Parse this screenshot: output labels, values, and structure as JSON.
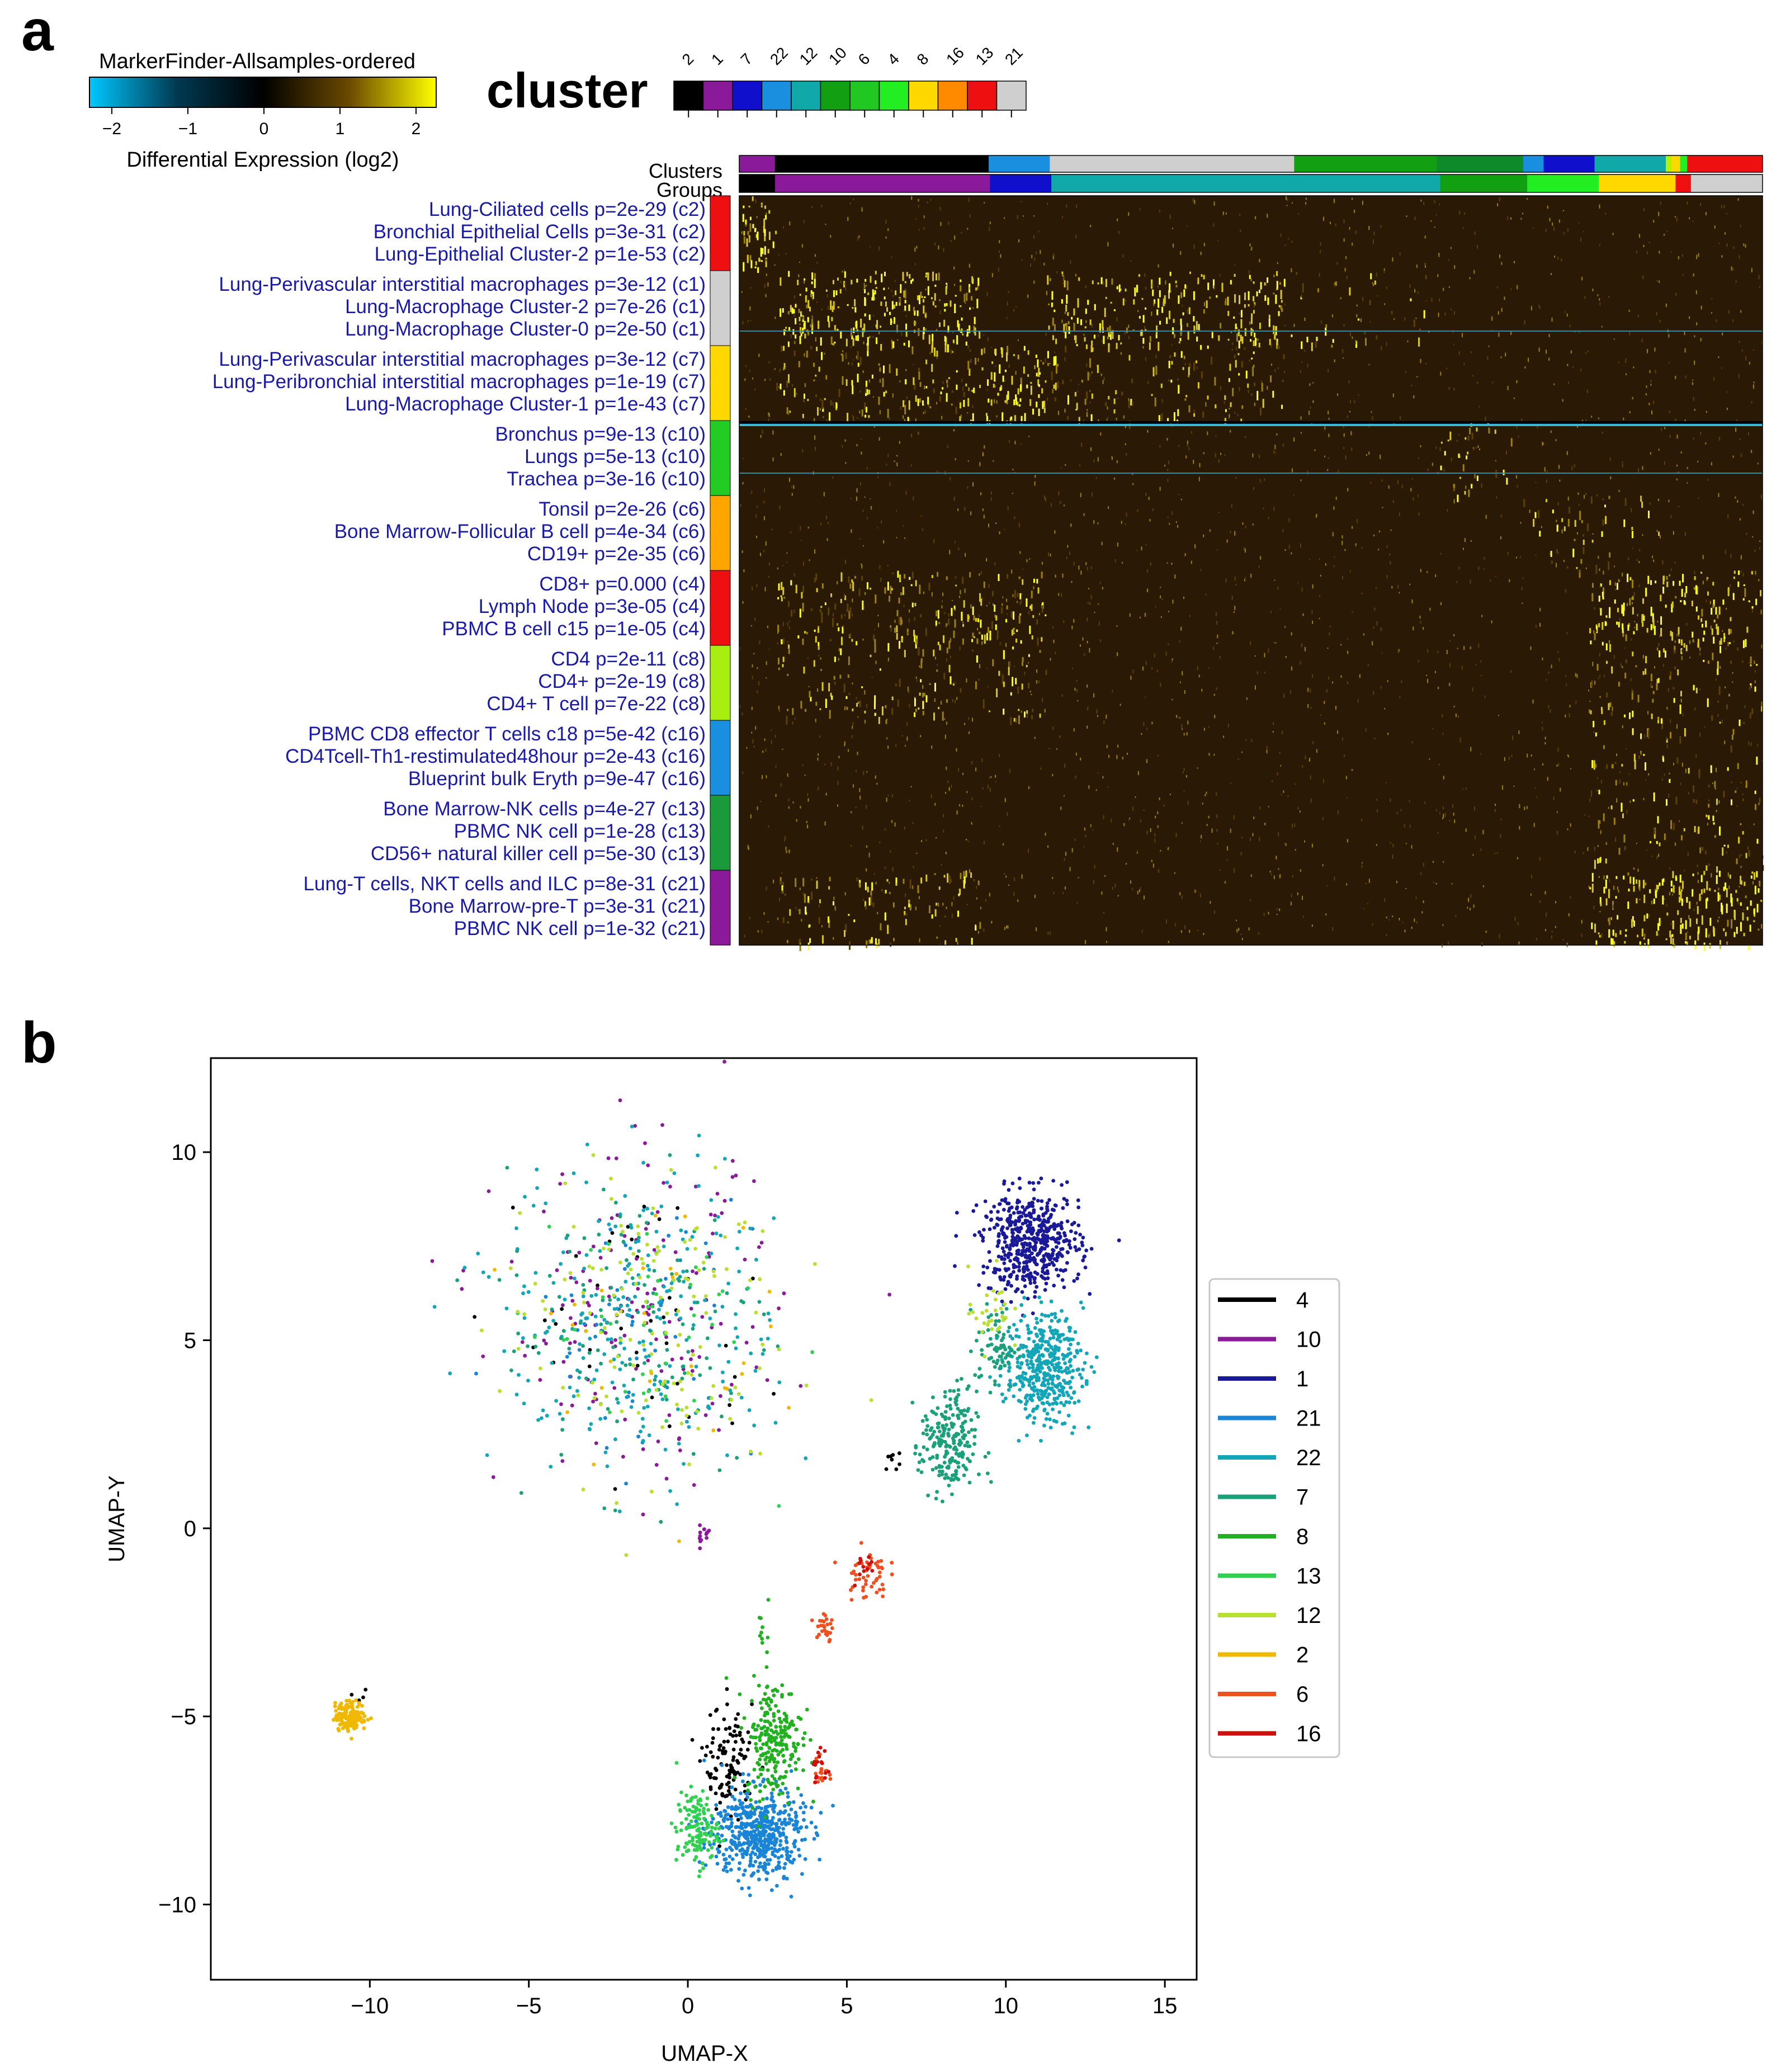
{
  "figure": {
    "panel_a_letter": "a",
    "panel_b_letter": "b"
  },
  "colorbar": {
    "title": "MarkerFinder-Allsamples-ordered",
    "ticks": [
      "−2",
      "−1",
      "0",
      "1",
      "2"
    ],
    "label": "Differential Expression (log2)",
    "stops": [
      "#00c8ff",
      "#003a52",
      "#000000",
      "#6b4a00",
      "#ffff00"
    ]
  },
  "cluster_key": {
    "title": "cluster",
    "labels": [
      "2",
      "1",
      "7",
      "22",
      "12",
      "10",
      "6",
      "4",
      "8",
      "16",
      "13",
      "21"
    ],
    "colors": [
      "#000000",
      "#8b1a9b",
      "#1010cc",
      "#1a8fe0",
      "#10a8a8",
      "#12a012",
      "#22c822",
      "#22ee22",
      "#ffd800",
      "#ff8a00",
      "#ee1010",
      "#cfcfcf"
    ]
  },
  "heatmap": {
    "clusters_label": "Clusters",
    "groups_label": "Groups",
    "clusters_bar": [
      {
        "color": "#8b1a9b",
        "weight": 3.5
      },
      {
        "color": "#000000",
        "weight": 21
      },
      {
        "color": "#1a8fe0",
        "weight": 6
      },
      {
        "color": "#cfcfcf",
        "weight": 24
      },
      {
        "color": "#12a012",
        "weight": 14
      },
      {
        "color": "#0f8a2a",
        "weight": 8.5
      },
      {
        "color": "#1a8fe0",
        "weight": 2
      },
      {
        "color": "#1010cc",
        "weight": 5
      },
      {
        "color": "#10a8a8",
        "weight": 7
      },
      {
        "color": "#b8f000",
        "weight": 0.6
      },
      {
        "color": "#ffd800",
        "weight": 0.8
      },
      {
        "color": "#22ee22",
        "weight": 0.7
      },
      {
        "color": "#ee1010",
        "weight": 7.4
      }
    ],
    "groups_bar": [
      {
        "color": "#000000",
        "weight": 3.5
      },
      {
        "color": "#8b1a9b",
        "weight": 21
      },
      {
        "color": "#1010cc",
        "weight": 6
      },
      {
        "color": "#10a8a8",
        "weight": 38
      },
      {
        "color": "#12a012",
        "weight": 8.5
      },
      {
        "color": "#22ee22",
        "weight": 7
      },
      {
        "color": "#ffd800",
        "weight": 7.5
      },
      {
        "color": "#ee1010",
        "weight": 1.5
      },
      {
        "color": "#cfcfcf",
        "weight": 7
      }
    ],
    "row_groups": [
      {
        "color": "#ee1010",
        "labels": [
          "Lung-Ciliated cells p=2e-29 (c2)",
          "Bronchial Epithelial Cells p=3e-31 (c2)",
          "Lung-Epithelial Cluster-2 p=1e-53 (c2)"
        ]
      },
      {
        "color": "#cfcfcf",
        "labels": [
          "Lung-Perivascular interstitial macrophages p=3e-12 (c1)",
          "Lung-Macrophage Cluster-2 p=7e-26 (c1)",
          "Lung-Macrophage Cluster-0 p=2e-50 (c1)"
        ]
      },
      {
        "color": "#ffd800",
        "labels": [
          "Lung-Perivascular interstitial macrophages p=3e-12 (c7)",
          "Lung-Peribronchial interstitial macrophages p=1e-19 (c7)",
          "Lung-Macrophage Cluster-1 p=1e-43 (c7)"
        ]
      },
      {
        "color": "#22cc22",
        "labels": [
          "Bronchus p=9e-13 (c10)",
          "Lungs p=5e-13 (c10)",
          "Trachea p=3e-16 (c10)"
        ]
      },
      {
        "color": "#ffa500",
        "labels": [
          "Tonsil p=2e-26 (c6)",
          "Bone Marrow-Follicular B cell p=4e-34 (c6)",
          "CD19+ p=2e-35 (c6)"
        ]
      },
      {
        "color": "#ee1010",
        "labels": [
          "CD8+ p=0.000 (c4)",
          "Lymph Node p=3e-05 (c4)",
          "PBMC B cell c15 p=1e-05 (c4)"
        ]
      },
      {
        "color": "#a8ee10",
        "labels": [
          "CD4 p=2e-11 (c8)",
          "CD4+ p=2e-19 (c8)",
          "CD4+ T cell p=7e-22 (c8)"
        ]
      },
      {
        "color": "#1a8fe0",
        "labels": [
          "PBMC CD8 effector T cells c18 p=5e-42 (c16)",
          "CD4Tcell-Th1-restimulated48hour p=2e-43 (c16)",
          "Blueprint bulk Eryth p=9e-47 (c16)"
        ]
      },
      {
        "color": "#1a9a3a",
        "labels": [
          "Bone Marrow-NK cells p=4e-27 (c13)",
          "PBMC NK cell p=1e-28 (c13)",
          "CD56+ natural killer cell p=5e-30 (c13)"
        ]
      },
      {
        "color": "#8b1a9b",
        "labels": [
          "Lung-T cells, NKT cells and ILC p=8e-31 (c21)",
          "Bone Marrow-pre-T p=3e-31 (c21)",
          "PBMC NK cell p=1e-32 (c21)"
        ]
      }
    ]
  },
  "chart_data": {
    "type": "scatter",
    "title": "",
    "xlabel": "UMAP-X",
    "ylabel": "UMAP-Y",
    "xlim": [
      -15,
      16
    ],
    "ylim": [
      -12,
      12.5
    ],
    "xticks": [
      -10,
      -5,
      0,
      5,
      10,
      15
    ],
    "yticks": [
      -10,
      -5,
      0,
      5,
      10
    ],
    "legend_position": "right",
    "series": [
      {
        "name": "4",
        "color": "#000000",
        "blobs": [
          [
            -1.5,
            5.5,
            3.5,
            3.5,
            40
          ],
          [
            1.3,
            -6.3,
            0.7,
            1.4,
            120
          ],
          [
            6.4,
            1.9,
            0.3,
            0.3,
            8
          ],
          [
            -10.3,
            -4.4,
            0.3,
            0.3,
            4
          ]
        ]
      },
      {
        "name": "10",
        "color": "#8b1a9b",
        "blobs": [
          [
            -1.5,
            5.5,
            4,
            3.8,
            160
          ],
          [
            0.5,
            -0.2,
            0.25,
            0.3,
            14
          ]
        ]
      },
      {
        "name": "1",
        "color": "#1a1a99",
        "blobs": [
          [
            10.8,
            7.6,
            1.4,
            1.2,
            520
          ]
        ]
      },
      {
        "name": "21",
        "color": "#1a85d6",
        "blobs": [
          [
            2.2,
            -8.1,
            1.3,
            1.1,
            520
          ],
          [
            -1.5,
            5.5,
            3.5,
            3.5,
            50
          ]
        ]
      },
      {
        "name": "22",
        "color": "#12a6b8",
        "blobs": [
          [
            11.2,
            4.3,
            1.1,
            1.3,
            420
          ],
          [
            -1.5,
            5.5,
            4,
            3.8,
            250
          ]
        ]
      },
      {
        "name": "7",
        "color": "#1aa07a",
        "blobs": [
          [
            8.2,
            2.2,
            0.8,
            1.3,
            220
          ],
          [
            9.7,
            4.8,
            0.6,
            1,
            70
          ],
          [
            -1.5,
            5.5,
            4,
            3.8,
            120
          ]
        ]
      },
      {
        "name": "8",
        "color": "#20b020",
        "blobs": [
          [
            2.7,
            -5.6,
            0.8,
            1.4,
            230
          ],
          [
            2.4,
            -2.8,
            0.15,
            0.6,
            10
          ]
        ]
      },
      {
        "name": "13",
        "color": "#30d050",
        "blobs": [
          [
            0.3,
            -8,
            0.6,
            0.9,
            130
          ],
          [
            -1.5,
            5.5,
            3.5,
            3.5,
            40
          ]
        ]
      },
      {
        "name": "12",
        "color": "#b8e030",
        "blobs": [
          [
            -1.5,
            5.5,
            4,
            3.8,
            140
          ],
          [
            9.5,
            5.8,
            0.6,
            1,
            30
          ]
        ]
      },
      {
        "name": "2",
        "color": "#f0b800",
        "blobs": [
          [
            -10.6,
            -5,
            0.45,
            0.35,
            170
          ],
          [
            -1.5,
            5.5,
            3.5,
            3.5,
            30
          ]
        ]
      },
      {
        "name": "6",
        "color": "#f05020",
        "blobs": [
          [
            5.6,
            -1.2,
            0.6,
            0.6,
            50
          ],
          [
            4.3,
            -2.6,
            0.3,
            0.5,
            25
          ],
          [
            4.2,
            -6.5,
            0.2,
            0.5,
            18
          ]
        ]
      },
      {
        "name": "16",
        "color": "#cc1010",
        "blobs": [
          [
            4.2,
            -6.4,
            0.25,
            0.5,
            16
          ],
          [
            5.5,
            -1,
            0.4,
            0.4,
            12
          ]
        ]
      }
    ]
  }
}
